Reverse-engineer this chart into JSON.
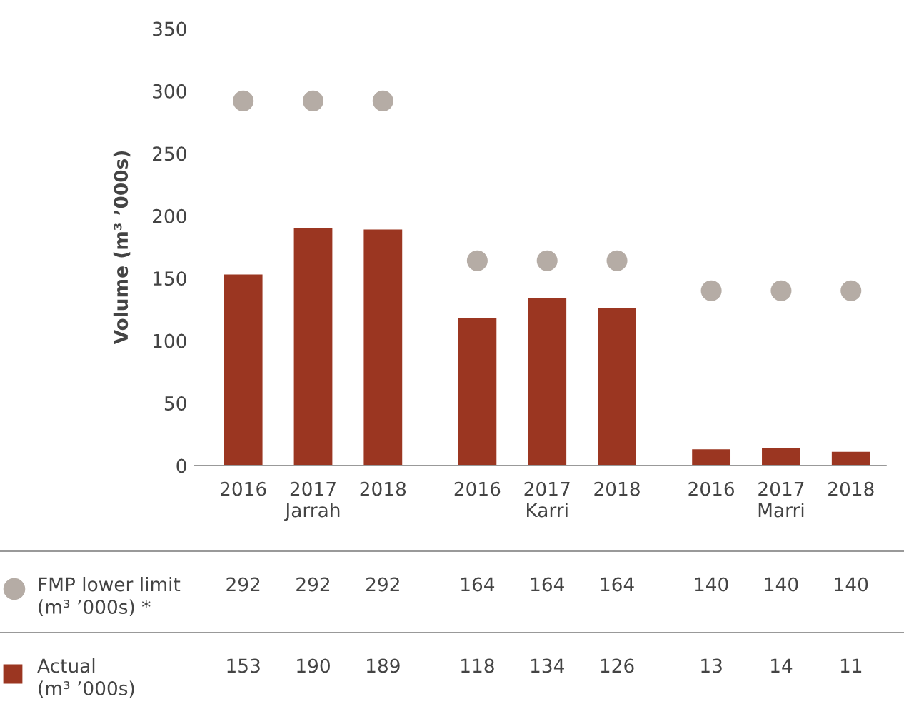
{
  "chart_data": {
    "type": "bar",
    "ylabel": "Volume (m³ ’000s)",
    "categories": [
      "2016",
      "2017",
      "2018",
      "2016",
      "2017",
      "2018",
      "2016",
      "2017",
      "2018"
    ],
    "series": [
      {
        "name": "FMP lower limit\n(m³ ’000s) *",
        "type": "scatter",
        "color": "#b5aca5",
        "values": [
          292,
          292,
          292,
          164,
          164,
          164,
          140,
          140,
          140
        ]
      },
      {
        "name": "Actual\n(m³ ’000s)",
        "color": "#9b3621",
        "values": [
          153,
          190,
          189,
          118,
          134,
          126,
          13,
          14,
          11
        ]
      }
    ],
    "annotations": [
      "Jarrah",
      "Karri",
      "Marri"
    ],
    "ylim": [
      0,
      350
    ],
    "yticks": [
      0,
      50,
      100,
      150,
      200,
      250,
      300,
      350
    ],
    "data_labels": true,
    "legend": "bottom",
    "marker": "circle",
    "grid": false
  }
}
